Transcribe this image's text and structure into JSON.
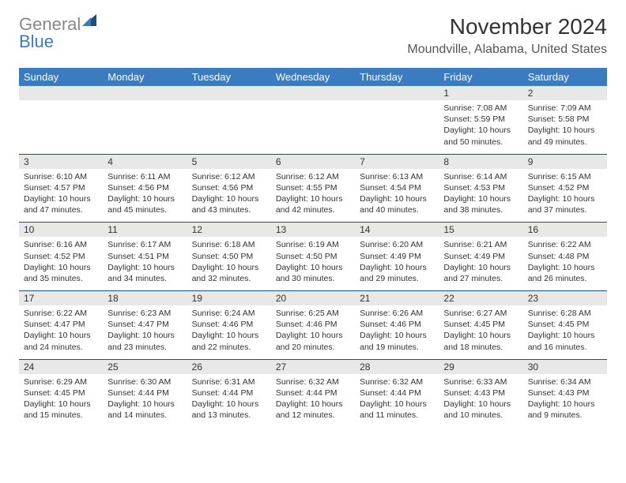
{
  "brand": {
    "word1": "General",
    "word2": "Blue",
    "color_general": "#888888",
    "color_blue": "#3b7bbf"
  },
  "header": {
    "title": "November 2024",
    "location": "Moundville, Alabama, United States"
  },
  "theme": {
    "header_bg": "#3b7bbf",
    "header_fg": "#ffffff",
    "numband_bg": "#e8e8e8",
    "week_border": "#1f4e79"
  },
  "dow": [
    "Sunday",
    "Monday",
    "Tuesday",
    "Wednesday",
    "Thursday",
    "Friday",
    "Saturday"
  ],
  "weeks": [
    [
      null,
      null,
      null,
      null,
      null,
      {
        "n": "1",
        "sr": "Sunrise: 7:08 AM",
        "ss": "Sunset: 5:59 PM",
        "dl": "Daylight: 10 hours and 50 minutes."
      },
      {
        "n": "2",
        "sr": "Sunrise: 7:09 AM",
        "ss": "Sunset: 5:58 PM",
        "dl": "Daylight: 10 hours and 49 minutes."
      }
    ],
    [
      {
        "n": "3",
        "sr": "Sunrise: 6:10 AM",
        "ss": "Sunset: 4:57 PM",
        "dl": "Daylight: 10 hours and 47 minutes."
      },
      {
        "n": "4",
        "sr": "Sunrise: 6:11 AM",
        "ss": "Sunset: 4:56 PM",
        "dl": "Daylight: 10 hours and 45 minutes."
      },
      {
        "n": "5",
        "sr": "Sunrise: 6:12 AM",
        "ss": "Sunset: 4:56 PM",
        "dl": "Daylight: 10 hours and 43 minutes."
      },
      {
        "n": "6",
        "sr": "Sunrise: 6:12 AM",
        "ss": "Sunset: 4:55 PM",
        "dl": "Daylight: 10 hours and 42 minutes."
      },
      {
        "n": "7",
        "sr": "Sunrise: 6:13 AM",
        "ss": "Sunset: 4:54 PM",
        "dl": "Daylight: 10 hours and 40 minutes."
      },
      {
        "n": "8",
        "sr": "Sunrise: 6:14 AM",
        "ss": "Sunset: 4:53 PM",
        "dl": "Daylight: 10 hours and 38 minutes."
      },
      {
        "n": "9",
        "sr": "Sunrise: 6:15 AM",
        "ss": "Sunset: 4:52 PM",
        "dl": "Daylight: 10 hours and 37 minutes."
      }
    ],
    [
      {
        "n": "10",
        "sr": "Sunrise: 6:16 AM",
        "ss": "Sunset: 4:52 PM",
        "dl": "Daylight: 10 hours and 35 minutes."
      },
      {
        "n": "11",
        "sr": "Sunrise: 6:17 AM",
        "ss": "Sunset: 4:51 PM",
        "dl": "Daylight: 10 hours and 34 minutes."
      },
      {
        "n": "12",
        "sr": "Sunrise: 6:18 AM",
        "ss": "Sunset: 4:50 PM",
        "dl": "Daylight: 10 hours and 32 minutes."
      },
      {
        "n": "13",
        "sr": "Sunrise: 6:19 AM",
        "ss": "Sunset: 4:50 PM",
        "dl": "Daylight: 10 hours and 30 minutes."
      },
      {
        "n": "14",
        "sr": "Sunrise: 6:20 AM",
        "ss": "Sunset: 4:49 PM",
        "dl": "Daylight: 10 hours and 29 minutes."
      },
      {
        "n": "15",
        "sr": "Sunrise: 6:21 AM",
        "ss": "Sunset: 4:49 PM",
        "dl": "Daylight: 10 hours and 27 minutes."
      },
      {
        "n": "16",
        "sr": "Sunrise: 6:22 AM",
        "ss": "Sunset: 4:48 PM",
        "dl": "Daylight: 10 hours and 26 minutes."
      }
    ],
    [
      {
        "n": "17",
        "sr": "Sunrise: 6:22 AM",
        "ss": "Sunset: 4:47 PM",
        "dl": "Daylight: 10 hours and 24 minutes."
      },
      {
        "n": "18",
        "sr": "Sunrise: 6:23 AM",
        "ss": "Sunset: 4:47 PM",
        "dl": "Daylight: 10 hours and 23 minutes."
      },
      {
        "n": "19",
        "sr": "Sunrise: 6:24 AM",
        "ss": "Sunset: 4:46 PM",
        "dl": "Daylight: 10 hours and 22 minutes."
      },
      {
        "n": "20",
        "sr": "Sunrise: 6:25 AM",
        "ss": "Sunset: 4:46 PM",
        "dl": "Daylight: 10 hours and 20 minutes."
      },
      {
        "n": "21",
        "sr": "Sunrise: 6:26 AM",
        "ss": "Sunset: 4:46 PM",
        "dl": "Daylight: 10 hours and 19 minutes."
      },
      {
        "n": "22",
        "sr": "Sunrise: 6:27 AM",
        "ss": "Sunset: 4:45 PM",
        "dl": "Daylight: 10 hours and 18 minutes."
      },
      {
        "n": "23",
        "sr": "Sunrise: 6:28 AM",
        "ss": "Sunset: 4:45 PM",
        "dl": "Daylight: 10 hours and 16 minutes."
      }
    ],
    [
      {
        "n": "24",
        "sr": "Sunrise: 6:29 AM",
        "ss": "Sunset: 4:45 PM",
        "dl": "Daylight: 10 hours and 15 minutes."
      },
      {
        "n": "25",
        "sr": "Sunrise: 6:30 AM",
        "ss": "Sunset: 4:44 PM",
        "dl": "Daylight: 10 hours and 14 minutes."
      },
      {
        "n": "26",
        "sr": "Sunrise: 6:31 AM",
        "ss": "Sunset: 4:44 PM",
        "dl": "Daylight: 10 hours and 13 minutes."
      },
      {
        "n": "27",
        "sr": "Sunrise: 6:32 AM",
        "ss": "Sunset: 4:44 PM",
        "dl": "Daylight: 10 hours and 12 minutes."
      },
      {
        "n": "28",
        "sr": "Sunrise: 6:32 AM",
        "ss": "Sunset: 4:44 PM",
        "dl": "Daylight: 10 hours and 11 minutes."
      },
      {
        "n": "29",
        "sr": "Sunrise: 6:33 AM",
        "ss": "Sunset: 4:43 PM",
        "dl": "Daylight: 10 hours and 10 minutes."
      },
      {
        "n": "30",
        "sr": "Sunrise: 6:34 AM",
        "ss": "Sunset: 4:43 PM",
        "dl": "Daylight: 10 hours and 9 minutes."
      }
    ]
  ]
}
